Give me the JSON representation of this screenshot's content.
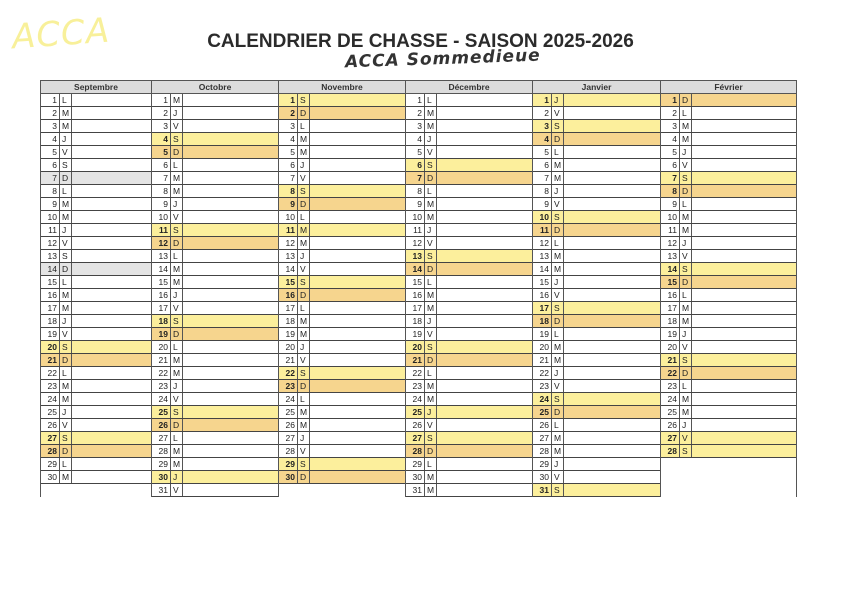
{
  "logo_text": "ACCA",
  "title": "CALENDRIER DE CHASSE - SAISON 2025-2026",
  "subtitle": "ACCA Sommedieue",
  "colors": {
    "saturday_holiday": "#fcef9c",
    "sunday": "#f6d58e",
    "grey": "#e4e4e4"
  },
  "months": [
    {
      "name": "Septembre",
      "letters": "LMMJVSDLMMJVSDLMMJVSDLMMJVSDLM",
      "yellow": [
        20,
        27
      ],
      "orange": [
        21,
        28
      ],
      "grey": [
        7,
        14
      ]
    },
    {
      "name": "Octobre",
      "letters": "MJVSDLMMJVSDLMMJVSDLMMJVSDLMMJV",
      "yellow": [
        4,
        11,
        18,
        25,
        30
      ],
      "orange": [
        5,
        12,
        19,
        26
      ],
      "grey": []
    },
    {
      "name": "Novembre",
      "letters": "SDLMMJVSDLMMJVSDLMMJVSDLMMJVSD",
      "yellow": [
        1,
        8,
        11,
        15,
        22,
        29
      ],
      "orange": [
        2,
        9,
        16,
        23,
        30
      ],
      "grey": []
    },
    {
      "name": "Décembre",
      "letters": "LMMJVSDLMMJVSDLMMJVSDLMMJVSDLMM",
      "yellow": [
        6,
        13,
        20,
        25,
        27
      ],
      "orange": [
        7,
        14,
        21,
        28
      ],
      "grey": []
    },
    {
      "name": "Janvier",
      "letters": "JVSDLMMJVSDLMMJVSDLMMJVSDLMMJVS",
      "yellow": [
        1,
        3,
        10,
        17,
        24,
        31
      ],
      "orange": [
        4,
        11,
        18,
        25
      ],
      "grey": []
    },
    {
      "name": "Février",
      "letters": "DLMMJVSDLMMJVSDLMMJVSDLMMJVS",
      "yellow": [
        7,
        14,
        21,
        27,
        28
      ],
      "orange": [
        1,
        8,
        15,
        22
      ],
      "grey": []
    }
  ]
}
